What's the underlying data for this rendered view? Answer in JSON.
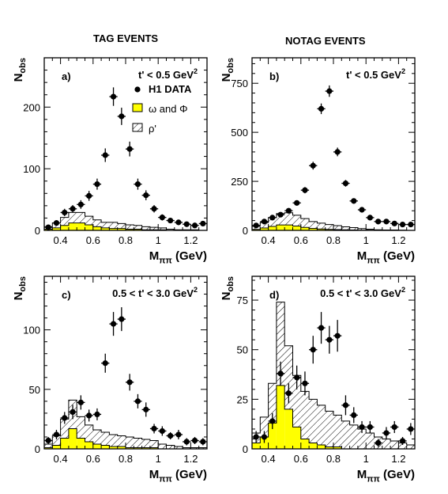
{
  "headers": {
    "left": "TAG EVENTS",
    "right": "NOTAG EVENTS"
  },
  "colors": {
    "omega_phi_fill": "#ffff00",
    "points": "#000000",
    "hatch": "#000000"
  },
  "chart_data": [
    {
      "type": "scatter",
      "panel": "a)",
      "cut_label": "t' < 0.5 GeV²",
      "xlabel": "Mππ (GeV)",
      "ylabel": "Nobs",
      "xlim": [
        0.3,
        1.3
      ],
      "ylim": [
        0,
        280
      ],
      "xticks": [
        0.4,
        0.6,
        0.8,
        1.0,
        1.2
      ],
      "xtick_labels": [
        "0.4",
        "0.6",
        "0.8",
        "1",
        "1.2"
      ],
      "yticks": [
        0,
        100,
        200
      ],
      "ytick_labels": [
        "0",
        "100",
        "200"
      ],
      "legend": [
        "H1 DATA",
        "ω and Φ",
        "ρ'"
      ],
      "series": [
        {
          "name": "H1 DATA",
          "type": "points",
          "x": [
            0.325,
            0.375,
            0.425,
            0.475,
            0.525,
            0.575,
            0.625,
            0.675,
            0.725,
            0.775,
            0.825,
            0.875,
            0.925,
            0.975,
            1.025,
            1.075,
            1.125,
            1.175,
            1.225,
            1.275
          ],
          "y": [
            5,
            12,
            29,
            35,
            42,
            56,
            75,
            122,
            217,
            185,
            132,
            75,
            57,
            35,
            21,
            16,
            13,
            10,
            8,
            11
          ],
          "err": [
            3,
            4,
            6,
            6,
            7,
            8,
            9,
            11,
            15,
            14,
            12,
            9,
            8,
            6,
            5,
            4,
            4,
            3,
            3,
            3
          ]
        },
        {
          "name": "ω and Φ",
          "type": "step",
          "x": [
            0.325,
            0.375,
            0.425,
            0.475,
            0.525,
            0.575,
            0.625,
            0.675,
            0.725,
            0.775,
            0.825,
            0.875,
            0.925,
            0.975,
            1.025,
            1.075,
            1.125,
            1.175,
            1.225,
            1.275
          ],
          "y": [
            2,
            4,
            8,
            12,
            12,
            9,
            6,
            4,
            3,
            3,
            2,
            2,
            1,
            1,
            1,
            0,
            0,
            0,
            0,
            0
          ]
        },
        {
          "name": "ρ'",
          "type": "step",
          "x": [
            0.325,
            0.375,
            0.425,
            0.475,
            0.525,
            0.575,
            0.625,
            0.675,
            0.725,
            0.775,
            0.825,
            0.875,
            0.925,
            0.975,
            1.025,
            1.075,
            1.125,
            1.175,
            1.225,
            1.275
          ],
          "y": [
            4,
            8,
            13,
            17,
            17,
            14,
            11,
            9,
            10,
            8,
            7,
            6,
            5,
            4,
            3,
            2,
            1,
            1,
            1,
            0
          ]
        }
      ]
    },
    {
      "type": "scatter",
      "panel": "b)",
      "cut_label": "t' < 0.5 GeV²",
      "xlabel": "Mππ (GeV)",
      "ylabel": "Nobs",
      "xlim": [
        0.3,
        1.3
      ],
      "ylim": [
        0,
        880
      ],
      "xticks": [
        0.4,
        0.6,
        0.8,
        1.0,
        1.2
      ],
      "xtick_labels": [
        "0.4",
        "0.6",
        "0.8",
        "1",
        "1.2"
      ],
      "yticks": [
        0,
        250,
        500,
        750
      ],
      "ytick_labels": [
        "0",
        "250",
        "500",
        "750"
      ],
      "series": [
        {
          "name": "H1 DATA",
          "type": "points",
          "x": [
            0.325,
            0.375,
            0.425,
            0.475,
            0.525,
            0.575,
            0.625,
            0.675,
            0.725,
            0.775,
            0.825,
            0.875,
            0.925,
            0.975,
            1.025,
            1.075,
            1.125,
            1.175,
            1.225,
            1.275
          ],
          "y": [
            25,
            45,
            65,
            80,
            100,
            140,
            205,
            330,
            620,
            710,
            400,
            240,
            150,
            105,
            65,
            45,
            45,
            35,
            30,
            30
          ],
          "err": [
            6,
            8,
            9,
            10,
            11,
            13,
            16,
            20,
            27,
            29,
            22,
            17,
            13,
            11,
            9,
            8,
            8,
            7,
            6,
            6
          ]
        },
        {
          "name": "ω and Φ",
          "type": "step",
          "x": [
            0.325,
            0.375,
            0.425,
            0.475,
            0.525,
            0.575,
            0.625,
            0.675,
            0.725,
            0.775,
            0.825,
            0.875,
            0.925,
            0.975,
            1.025,
            1.075,
            1.125,
            1.175,
            1.225,
            1.275
          ],
          "y": [
            5,
            12,
            20,
            28,
            28,
            22,
            15,
            10,
            7,
            5,
            4,
            3,
            2,
            1,
            1,
            0,
            0,
            0,
            0,
            0
          ]
        },
        {
          "name": "ρ'",
          "type": "step",
          "x": [
            0.325,
            0.375,
            0.425,
            0.475,
            0.525,
            0.575,
            0.625,
            0.675,
            0.725,
            0.775,
            0.825,
            0.875,
            0.925,
            0.975,
            1.025,
            1.075,
            1.125,
            1.175,
            1.225,
            1.275
          ],
          "y": [
            15,
            28,
            45,
            58,
            62,
            55,
            45,
            35,
            30,
            25,
            20,
            15,
            12,
            8,
            5,
            3,
            2,
            2,
            1,
            0
          ]
        }
      ]
    },
    {
      "type": "scatter",
      "panel": "c)",
      "cut_label": "0.5 < t' < 3.0 GeV²",
      "xlabel": "Mππ (GeV)",
      "ylabel": "Nobs",
      "xlim": [
        0.3,
        1.3
      ],
      "ylim": [
        0,
        145
      ],
      "xticks": [
        0.4,
        0.6,
        0.8,
        1.0,
        1.2
      ],
      "xtick_labels": [
        "0.4",
        "0.6",
        "0.8",
        "1",
        "1.2"
      ],
      "yticks": [
        0,
        50,
        100
      ],
      "ytick_labels": [
        "0",
        "50",
        "100"
      ],
      "series": [
        {
          "name": "H1 DATA",
          "type": "points",
          "x": [
            0.325,
            0.375,
            0.425,
            0.475,
            0.525,
            0.575,
            0.625,
            0.675,
            0.725,
            0.775,
            0.825,
            0.875,
            0.925,
            0.975,
            1.025,
            1.075,
            1.125,
            1.175,
            1.225,
            1.275
          ],
          "y": [
            7,
            12,
            26,
            31,
            39,
            28,
            29,
            72,
            105,
            109,
            56,
            40,
            33,
            17,
            15,
            11,
            12,
            6,
            7,
            6
          ],
          "err": [
            3,
            4,
            5,
            6,
            6,
            5,
            5,
            8,
            10,
            10,
            7,
            6,
            6,
            4,
            4,
            3,
            4,
            3,
            3,
            3
          ]
        },
        {
          "name": "ω and Φ",
          "type": "step",
          "x": [
            0.325,
            0.375,
            0.425,
            0.475,
            0.525,
            0.575,
            0.625,
            0.675,
            0.725,
            0.775,
            0.825,
            0.875,
            0.925,
            0.975,
            1.025,
            1.075,
            1.125,
            1.175,
            1.225,
            1.275
          ],
          "y": [
            1,
            3,
            9,
            17,
            9,
            6,
            4,
            3,
            2,
            2,
            1,
            1,
            1,
            1,
            0,
            0,
            0,
            0,
            0,
            0
          ]
        },
        {
          "name": "ρ'",
          "type": "step",
          "x": [
            0.325,
            0.375,
            0.425,
            0.475,
            0.525,
            0.575,
            0.625,
            0.675,
            0.725,
            0.775,
            0.825,
            0.875,
            0.925,
            0.975,
            1.025,
            1.075,
            1.125,
            1.175,
            1.225,
            1.275
          ],
          "y": [
            3,
            8,
            16,
            24,
            18,
            14,
            12,
            11,
            10,
            9,
            9,
            8,
            7,
            6,
            4,
            3,
            2,
            1,
            1,
            1
          ]
        }
      ]
    },
    {
      "type": "scatter",
      "panel": "d)",
      "cut_label": "0.5 < t' < 3.0 GeV²",
      "xlabel": "Mππ (GeV)",
      "ylabel": "Nobs",
      "xlim": [
        0.3,
        1.3
      ],
      "ylim": [
        0,
        87
      ],
      "xticks": [
        0.4,
        0.6,
        0.8,
        1.0,
        1.2
      ],
      "xtick_labels": [
        "0.4",
        "0.6",
        "0.8",
        "1",
        "1.2"
      ],
      "yticks": [
        0,
        25,
        50,
        75
      ],
      "ytick_labels": [
        "0",
        "25",
        "50",
        "75"
      ],
      "series": [
        {
          "name": "H1 DATA",
          "type": "points",
          "x": [
            0.325,
            0.375,
            0.425,
            0.475,
            0.525,
            0.575,
            0.625,
            0.675,
            0.725,
            0.775,
            0.825,
            0.875,
            0.925,
            0.975,
            1.025,
            1.075,
            1.125,
            1.175,
            1.225,
            1.275
          ],
          "y": [
            6,
            6,
            14,
            38,
            28,
            36,
            33,
            50,
            61,
            55,
            57,
            22,
            17,
            11,
            11,
            3,
            8,
            11,
            4,
            10
          ],
          "err": [
            3,
            3,
            4,
            6,
            5,
            6,
            6,
            7,
            8,
            7,
            8,
            5,
            4,
            3,
            3,
            2,
            3,
            3,
            2,
            3
          ]
        },
        {
          "name": "ω and Φ",
          "type": "step",
          "x": [
            0.325,
            0.375,
            0.425,
            0.475,
            0.525,
            0.575,
            0.625,
            0.675,
            0.725,
            0.775,
            0.825,
            0.875,
            0.925,
            0.975,
            1.025,
            1.075,
            1.125,
            1.175,
            1.225,
            1.275
          ],
          "y": [
            3,
            6,
            13,
            32,
            20,
            11,
            5,
            3,
            2,
            1,
            1,
            0,
            0,
            0,
            0,
            0,
            0,
            0,
            0,
            0
          ]
        },
        {
          "name": "ρ'",
          "type": "step",
          "x": [
            0.325,
            0.375,
            0.425,
            0.475,
            0.525,
            0.575,
            0.625,
            0.675,
            0.725,
            0.775,
            0.825,
            0.875,
            0.925,
            0.975,
            1.025,
            1.075,
            1.125,
            1.175,
            1.225,
            1.275
          ],
          "y": [
            5,
            10,
            20,
            42,
            32,
            26,
            24,
            22,
            20,
            18,
            16,
            14,
            12,
            10,
            8,
            6,
            5,
            4,
            3,
            2
          ]
        }
      ]
    }
  ]
}
